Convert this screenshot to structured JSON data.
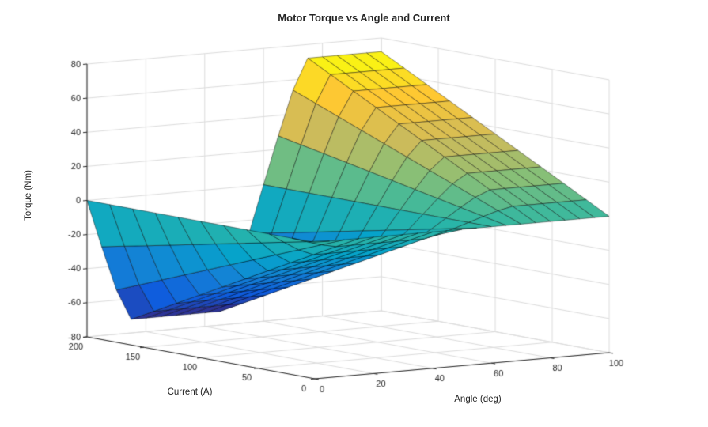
{
  "window": {
    "background": "#ffffff"
  },
  "chart_data": {
    "type": "surface",
    "title": "Motor Torque vs Angle and Current",
    "xlabel": "Angle (deg)",
    "ylabel": "Current (A)",
    "zlabel": "Torque (Nm)",
    "xlim": [
      0,
      100
    ],
    "ylim": [
      0,
      200
    ],
    "zlim": [
      -80,
      80
    ],
    "xticks": [
      0,
      20,
      40,
      60,
      80,
      100
    ],
    "yticks": [
      0,
      50,
      100,
      150,
      200
    ],
    "zticks": [
      -80,
      -60,
      -40,
      -20,
      0,
      20,
      40,
      60,
      80
    ],
    "grid": true,
    "view": {
      "azimuth": -37.5,
      "elevation": 30
    },
    "colormap": "parula",
    "colormap_stops": [
      "#352a87",
      "#0f5cdd",
      "#1481d6",
      "#06a4ca",
      "#2eb7a4",
      "#87bf77",
      "#d1bb59",
      "#fec832",
      "#f9fb0e"
    ],
    "axis_color": "#262626",
    "grid_color": "#dcdcdc",
    "x_angle_deg": [
      0,
      5,
      10,
      15,
      20,
      25,
      30,
      35,
      40,
      45,
      50,
      55,
      60,
      65,
      70,
      75,
      80,
      85,
      90,
      95,
      100
    ],
    "y_current_A": [
      0,
      20,
      40,
      60,
      80,
      100,
      120,
      140,
      160,
      180,
      200
    ],
    "z_torque_Nm": [
      [
        0,
        0,
        0,
        0,
        0,
        0,
        0,
        0,
        0,
        0,
        0,
        0,
        0,
        0,
        0,
        0,
        0,
        0,
        0,
        0,
        0
      ],
      [
        0,
        -2.8,
        -5.4,
        -7.2,
        -7.2,
        -7.2,
        -7.2,
        -7.2,
        -7.2,
        -7.2,
        -5.4,
        -2.8,
        0,
        2.8,
        5.4,
        7.2,
        7.2,
        7.2,
        7.2,
        7.2,
        7.2
      ],
      [
        0,
        -5.6,
        -10.8,
        -14.4,
        -14.4,
        -14.4,
        -14.4,
        -14.4,
        -14.4,
        -14.4,
        -10.8,
        -5.6,
        0,
        5.6,
        10.8,
        14.4,
        14.4,
        14.4,
        14.4,
        14.4,
        14.4
      ],
      [
        0,
        -8.4,
        -16.2,
        -21.6,
        -21.6,
        -21.6,
        -21.6,
        -21.6,
        -21.6,
        -21.6,
        -16.2,
        -8.4,
        0,
        8.4,
        16.2,
        21.6,
        21.6,
        21.6,
        21.6,
        21.6,
        21.6
      ],
      [
        0,
        -11.2,
        -21.6,
        -28.8,
        -28.8,
        -28.8,
        -28.8,
        -28.8,
        -28.8,
        -28.8,
        -21.6,
        -11.2,
        0,
        11.2,
        21.6,
        28.8,
        28.8,
        28.8,
        28.8,
        28.8,
        28.8
      ],
      [
        0,
        -14,
        -27,
        -36,
        -36,
        -36,
        -36,
        -36,
        -36,
        -36,
        -27,
        -14,
        0,
        14,
        27,
        36,
        36,
        36,
        36,
        36,
        36
      ],
      [
        0,
        -16.8,
        -32.4,
        -43.2,
        -43.2,
        -43.2,
        -43.2,
        -43.2,
        -43.2,
        -43.2,
        -32.4,
        -16.8,
        0,
        16.8,
        32.4,
        43.2,
        43.2,
        43.2,
        43.2,
        43.2,
        43.2
      ],
      [
        0,
        -19.6,
        -37.8,
        -50.4,
        -50.4,
        -50.4,
        -50.4,
        -50.4,
        -50.4,
        -50.4,
        -37.8,
        -19.6,
        0,
        19.6,
        37.8,
        50.4,
        50.4,
        50.4,
        50.4,
        50.4,
        50.4
      ],
      [
        0,
        -22.4,
        -43.2,
        -57.6,
        -57.6,
        -57.6,
        -57.6,
        -57.6,
        -57.6,
        -57.6,
        -43.2,
        -22.4,
        0,
        22.4,
        43.2,
        57.6,
        57.6,
        57.6,
        57.6,
        57.6,
        57.6
      ],
      [
        0,
        -25.1,
        -48.6,
        -64.8,
        -64.8,
        -64.8,
        -64.8,
        -64.8,
        -64.8,
        -64.8,
        -48.6,
        -25.1,
        0,
        25.1,
        48.6,
        64.8,
        64.8,
        64.8,
        64.8,
        64.8,
        64.8
      ],
      [
        0,
        -27.9,
        -54,
        -72,
        -72,
        -72,
        -72,
        -72,
        -72,
        -72,
        -54,
        -27.9,
        0,
        27.9,
        54,
        72,
        72,
        72,
        72,
        72,
        72
      ]
    ]
  }
}
